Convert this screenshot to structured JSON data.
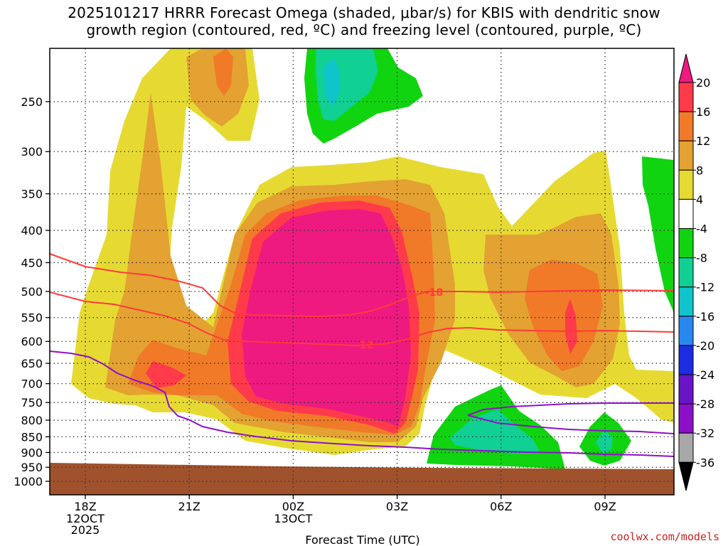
{
  "title": {
    "line1": "2025101217 HRRR Forecast Omega (shaded, μbar/s) for KBIS with dendritic snow",
    "line2": "growth region (contoured, red, ºC) and freezing level (contoured, purple, ºC)"
  },
  "credit": "coolwx.com/models",
  "chart_data": {
    "type": "heatmap",
    "xlabel": "Forecast Time (UTC)",
    "x_ticks": [
      {
        "label": "18Z",
        "sub": [
          "12OCT",
          "2025"
        ]
      },
      {
        "label": "21Z",
        "sub": []
      },
      {
        "label": "00Z",
        "sub": [
          "13OCT"
        ]
      },
      {
        "label": "03Z",
        "sub": []
      },
      {
        "label": "06Z",
        "sub": []
      },
      {
        "label": "09Z",
        "sub": []
      }
    ],
    "y_ticks": [
      250,
      300,
      350,
      400,
      450,
      500,
      550,
      600,
      650,
      700,
      750,
      800,
      850,
      900,
      950,
      1000
    ],
    "grid": true,
    "colorbar": {
      "labels": [
        "20",
        "16",
        "12",
        "8",
        "4",
        "-4",
        "-8",
        "-12",
        "-16",
        "-20",
        "-24",
        "-28",
        "-32",
        "-36"
      ],
      "colors": [
        "#ff3a4a",
        "#f07a28",
        "#e3a232",
        "#e6da32",
        "#ffffff",
        "#10d410",
        "#10d094",
        "#10c4cc",
        "#2888f0",
        "#1c2ce0",
        "#6a14c8",
        "#8c10c8",
        "#a8a8a8"
      ],
      "top_color": "#ee1a80",
      "bottom_color": "#000000"
    },
    "contours": [
      {
        "name": "-18",
        "color": "#ff3a3a"
      },
      {
        "name": "-12",
        "color": "#ff3a3a"
      }
    ],
    "freezing_color": "#9010c8",
    "terrain_color": "#a0522d"
  }
}
